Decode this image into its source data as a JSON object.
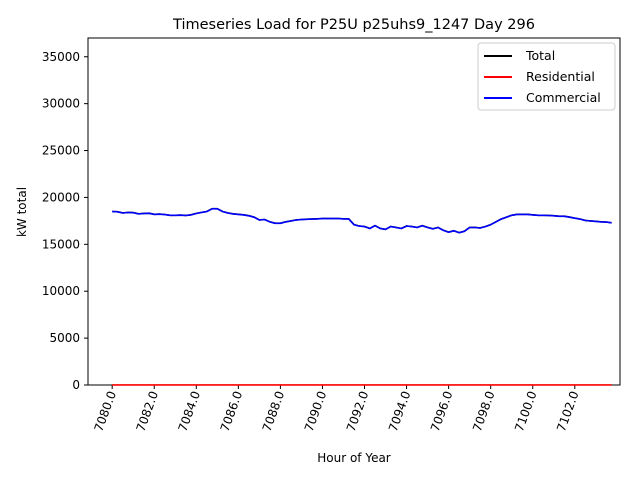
{
  "chart_data": {
    "type": "line",
    "title": "Timeseries Load for P25U p25uhs9_1247  Day 296",
    "xlabel": "Hour of Year",
    "ylabel": "kW total",
    "xlim": [
      7078.85,
      7104.15
    ],
    "ylim": [
      0,
      37000
    ],
    "xticks": [
      7080,
      7082,
      7084,
      7086,
      7088,
      7090,
      7092,
      7094,
      7096,
      7098,
      7100,
      7102
    ],
    "xtick_labels": [
      "7080.0",
      "7082.0",
      "7084.0",
      "7086.0",
      "7088.0",
      "7090.0",
      "7092.0",
      "7094.0",
      "7096.0",
      "7098.0",
      "7100.0",
      "7102.0"
    ],
    "yticks": [
      0,
      5000,
      10000,
      15000,
      20000,
      25000,
      30000,
      35000
    ],
    "ytick_labels": [
      "0",
      "5000",
      "10000",
      "15000",
      "20000",
      "25000",
      "30000",
      "35000"
    ],
    "legend_position": "top-right",
    "x": [
      7080.0,
      7080.25,
      7080.5,
      7080.75,
      7081.0,
      7081.25,
      7081.5,
      7081.75,
      7082.0,
      7082.25,
      7082.5,
      7082.75,
      7083.0,
      7083.25,
      7083.5,
      7083.75,
      7084.0,
      7084.25,
      7084.5,
      7084.75,
      7085.0,
      7085.25,
      7085.5,
      7085.75,
      7086.0,
      7086.25,
      7086.5,
      7086.75,
      7087.0,
      7087.25,
      7087.5,
      7087.75,
      7088.0,
      7088.25,
      7088.5,
      7088.75,
      7089.0,
      7089.25,
      7089.5,
      7089.75,
      7090.0,
      7090.25,
      7090.5,
      7090.75,
      7091.0,
      7091.25,
      7091.5,
      7091.75,
      7092.0,
      7092.25,
      7092.5,
      7092.75,
      7093.0,
      7093.25,
      7093.5,
      7093.75,
      7094.0,
      7094.25,
      7094.5,
      7094.75,
      7095.0,
      7095.25,
      7095.5,
      7095.75,
      7096.0,
      7096.25,
      7096.5,
      7096.75,
      7097.0,
      7097.25,
      7097.5,
      7097.75,
      7098.0,
      7098.25,
      7098.5,
      7098.75,
      7099.0,
      7099.25,
      7099.5,
      7099.75,
      7100.0,
      7100.25,
      7100.5,
      7100.75,
      7101.0,
      7101.25,
      7101.5,
      7101.75,
      7102.0,
      7102.25,
      7102.5,
      7102.75,
      7103.0,
      7103.25,
      7103.5,
      7103.75
    ],
    "series": [
      {
        "name": "Total",
        "color": "#000000",
        "values": [
          18500,
          18480,
          18350,
          18400,
          18380,
          18250,
          18300,
          18320,
          18200,
          18220,
          18180,
          18100,
          18100,
          18120,
          18080,
          18150,
          18300,
          18400,
          18500,
          18800,
          18800,
          18500,
          18350,
          18250,
          18200,
          18150,
          18050,
          17900,
          17600,
          17650,
          17400,
          17250,
          17250,
          17400,
          17500,
          17600,
          17650,
          17680,
          17700,
          17720,
          17750,
          17750,
          17750,
          17750,
          17720,
          17720,
          17100,
          16950,
          16900,
          16700,
          17000,
          16700,
          16600,
          16900,
          16800,
          16700,
          16950,
          16900,
          16800,
          17000,
          16800,
          16650,
          16800,
          16500,
          16300,
          16450,
          16250,
          16400,
          16800,
          16800,
          16750,
          16900,
          17100,
          17400,
          17700,
          17900,
          18100,
          18200,
          18200,
          18200,
          18150,
          18100,
          18100,
          18080,
          18050,
          18000,
          18000,
          17900,
          17800,
          17700,
          17550,
          17500,
          17450,
          17400,
          17380,
          17300
        ],
        "legend_label": "Total"
      },
      {
        "name": "Residential",
        "color": "#ff0000",
        "values": [
          10,
          10,
          10,
          10,
          10,
          10,
          10,
          10,
          10,
          10,
          10,
          10,
          10,
          10,
          10,
          10,
          10,
          10,
          10,
          10,
          10,
          10,
          10,
          10,
          10,
          10,
          10,
          10,
          10,
          10,
          10,
          10,
          10,
          10,
          10,
          10,
          10,
          10,
          10,
          10,
          10,
          10,
          10,
          10,
          10,
          10,
          10,
          10,
          10,
          10,
          10,
          10,
          10,
          10,
          10,
          10,
          10,
          10,
          10,
          10,
          10,
          10,
          10,
          10,
          10,
          10,
          10,
          10,
          10,
          10,
          10,
          10,
          10,
          10,
          10,
          10,
          10,
          10,
          10,
          10,
          10,
          10,
          10,
          10,
          10,
          10,
          10,
          10,
          10,
          10,
          10,
          10,
          10,
          10,
          10,
          10
        ],
        "legend_label": "Residential"
      },
      {
        "name": "Commercial",
        "color": "#0000ff",
        "values": [
          18490,
          18470,
          18340,
          18390,
          18370,
          18240,
          18290,
          18310,
          18190,
          18210,
          18170,
          18090,
          18090,
          18110,
          18070,
          18140,
          18290,
          18390,
          18490,
          18790,
          18790,
          18490,
          18340,
          18240,
          18190,
          18140,
          18040,
          17890,
          17590,
          17640,
          17390,
          17240,
          17240,
          17390,
          17490,
          17590,
          17640,
          17670,
          17690,
          17710,
          17740,
          17740,
          17740,
          17740,
          17710,
          17710,
          17090,
          16940,
          16890,
          16690,
          16990,
          16690,
          16590,
          16890,
          16790,
          16690,
          16940,
          16890,
          16790,
          16990,
          16790,
          16640,
          16790,
          16490,
          16290,
          16440,
          16240,
          16390,
          16790,
          16790,
          16740,
          16890,
          17090,
          17390,
          17690,
          17890,
          18090,
          18190,
          18190,
          18190,
          18140,
          18090,
          18090,
          18070,
          18040,
          17990,
          17990,
          17890,
          17790,
          17690,
          17540,
          17490,
          17440,
          17390,
          17370,
          17290
        ],
        "legend_label": "Commercial"
      }
    ]
  }
}
